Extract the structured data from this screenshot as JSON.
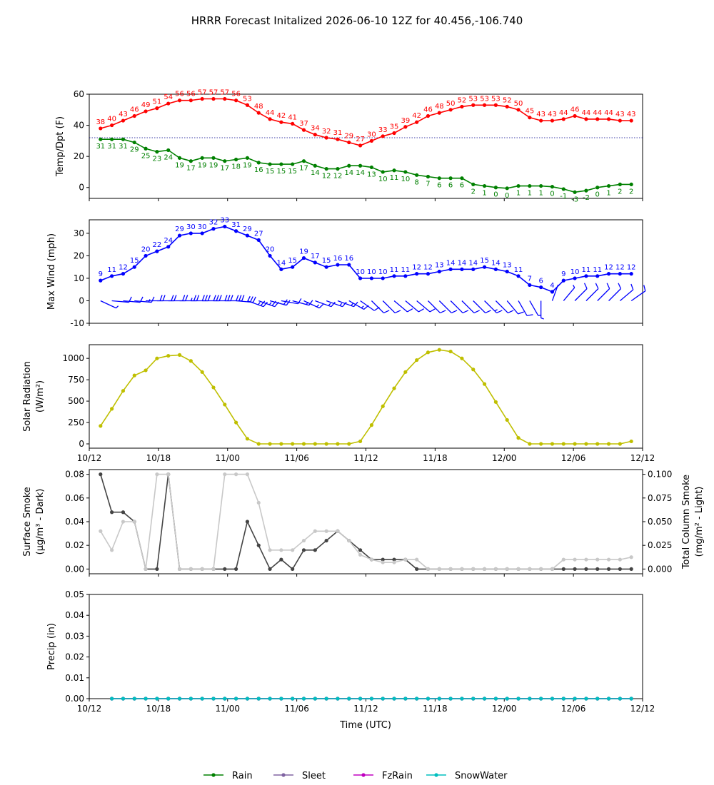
{
  "figure": {
    "title": "HRRR Forecast Initalized 2026-06-10 12Z for 40.456,-106.740",
    "x_tick_labels": [
      "10/12",
      "10/18",
      "11/00",
      "11/06",
      "11/12",
      "11/18",
      "12/00",
      "12/06",
      "12/12"
    ],
    "xlabel": "Time (UTC)"
  },
  "legend": {
    "items": [
      {
        "label": "Rain",
        "color": "#008000"
      },
      {
        "label": "Sleet",
        "color": "#8064a2"
      },
      {
        "label": "FzRain",
        "color": "#c000c0"
      },
      {
        "label": "SnowWater",
        "color": "#00bfbf"
      }
    ]
  },
  "chart_data": [
    {
      "type": "line",
      "ylabel": "Temp/Dpt (F)",
      "ylim": [
        -7,
        60
      ],
      "yticks": [
        0,
        20,
        40,
        60
      ],
      "x": [
        1,
        2,
        3,
        4,
        5,
        6,
        7,
        8,
        9,
        10,
        11,
        12,
        13,
        14,
        15,
        16,
        17,
        18,
        19,
        20,
        21,
        22,
        23,
        24,
        25,
        26,
        27,
        28,
        29,
        30,
        31,
        32,
        33,
        34,
        35,
        36,
        37,
        38,
        39,
        40,
        41,
        42,
        43,
        44,
        45,
        46,
        47,
        48
      ],
      "reference_line": {
        "y": 32,
        "color": "#00008b",
        "style": "dotted"
      },
      "series": [
        {
          "color": "#ff0000",
          "values": [
            38,
            40,
            43,
            46,
            49,
            51,
            54,
            56,
            56,
            57,
            57,
            57,
            56,
            53,
            48,
            44,
            42,
            41,
            37,
            34,
            32,
            31,
            29,
            27,
            30,
            33,
            35,
            39,
            42,
            46,
            48,
            50,
            52,
            53,
            53,
            53,
            52,
            50,
            45,
            43,
            43,
            44,
            46,
            44,
            44,
            44,
            43,
            43
          ],
          "labels": [
            "38",
            "40",
            "43",
            "46",
            "49",
            "51",
            "54",
            "56",
            "56",
            "57",
            "57",
            "57",
            "56",
            "53",
            "48",
            "44",
            "42",
            "41",
            "37",
            "34",
            "32",
            "31",
            "29",
            "27",
            "30",
            "33",
            "35",
            "39",
            "42",
            "46",
            "48",
            "50",
            "52",
            "53",
            "53",
            "53",
            "52",
            "50",
            "45",
            "43",
            "43",
            "44",
            "46",
            "44",
            "44",
            "44",
            "43",
            "43"
          ]
        },
        {
          "color": "#008000",
          "values": [
            31,
            31,
            31,
            29,
            25,
            23,
            24,
            19,
            17,
            19,
            19,
            17,
            18,
            19,
            16,
            15,
            15,
            15,
            17,
            14,
            12,
            12,
            14,
            14,
            13,
            10,
            11,
            10,
            8,
            7,
            6,
            6,
            6,
            2,
            1,
            0,
            -0.5,
            1,
            1,
            1,
            0.5,
            -1,
            -3,
            -2,
            0,
            1,
            2,
            2
          ],
          "labels": [
            "31",
            "31",
            "31",
            "29",
            "25",
            "23",
            "24",
            "19",
            "17",
            "19",
            "19",
            "17",
            "18",
            "19",
            "16",
            "15",
            "15",
            "15",
            "17",
            "14",
            "12",
            "12",
            "14",
            "14",
            "13",
            "10",
            "11",
            "10",
            "8",
            "7",
            "6",
            "6",
            "6",
            "2",
            "1",
            "0",
            "0",
            "1",
            "1",
            "1",
            "0",
            "-1",
            "-3",
            "-2",
            "0",
            "1",
            "2",
            "2"
          ]
        }
      ]
    },
    {
      "type": "line",
      "ylabel": "Max Wind (mph)",
      "ylim": [
        -10,
        36
      ],
      "yticks": [
        -10,
        0,
        10,
        20,
        30
      ],
      "x": [
        1,
        2,
        3,
        4,
        5,
        6,
        7,
        8,
        9,
        10,
        11,
        12,
        13,
        14,
        15,
        16,
        17,
        18,
        19,
        20,
        21,
        22,
        23,
        24,
        25,
        26,
        27,
        28,
        29,
        30,
        31,
        32,
        33,
        34,
        35,
        36,
        37,
        38,
        39,
        40,
        41,
        42,
        43,
        44,
        45,
        46,
        47,
        48
      ],
      "series": [
        {
          "color": "#0000ff",
          "values": [
            9,
            11,
            12,
            15,
            20,
            22,
            24,
            29,
            30,
            30,
            32,
            33,
            31,
            29,
            27,
            20,
            14,
            15,
            19,
            17,
            15,
            16,
            16,
            10,
            10,
            10,
            11,
            11,
            12,
            12,
            13,
            14,
            14,
            14,
            15,
            14,
            13,
            11,
            7,
            6,
            4,
            9,
            10,
            11,
            11,
            12,
            12,
            12
          ],
          "labels": [
            "9",
            "11",
            "12",
            "15",
            "20",
            "22",
            "24",
            "29",
            "30",
            "30",
            "32",
            "33",
            "31",
            "29",
            "27",
            "20",
            "14",
            "15",
            "19",
            "17",
            "15",
            "16",
            "16",
            "10",
            "10",
            "10",
            "11",
            "11",
            "12",
            "12",
            "13",
            "14",
            "14",
            "14",
            "15",
            "14",
            "13",
            "11",
            "7",
            "6",
            "4",
            "9",
            "10",
            "11",
            "11",
            "12",
            "12",
            "12"
          ]
        }
      ],
      "wind_barbs": {
        "color": "#0000ff",
        "y": 0,
        "direction_deg": [
          295,
          275,
          275,
          275,
          270,
          270,
          270,
          270,
          270,
          270,
          270,
          270,
          275,
          290,
          290,
          285,
          280,
          285,
          295,
          290,
          290,
          290,
          300,
          305,
          315,
          315,
          310,
          310,
          310,
          315,
          315,
          315,
          315,
          315,
          315,
          315,
          320,
          330,
          330,
          0,
          200,
          220,
          225,
          225,
          225,
          225,
          230,
          235
        ]
      }
    },
    {
      "type": "line",
      "ylabel": "Solar Radiation (W/m²)",
      "ylim": [
        -50,
        1160
      ],
      "yticks": [
        0,
        250,
        500,
        750,
        1000
      ],
      "x": [
        1,
        2,
        3,
        4,
        5,
        6,
        7,
        8,
        9,
        10,
        11,
        12,
        13,
        14,
        15,
        16,
        17,
        18,
        19,
        20,
        21,
        22,
        23,
        24,
        25,
        26,
        27,
        28,
        29,
        30,
        31,
        32,
        33,
        34,
        35,
        36,
        37,
        38,
        39,
        40,
        41,
        42,
        43,
        44,
        45,
        46,
        47,
        48
      ],
      "series": [
        {
          "color": "#bfbf00",
          "values": [
            210,
            410,
            620,
            800,
            860,
            1000,
            1030,
            1040,
            970,
            840,
            660,
            460,
            250,
            60,
            0,
            0,
            0,
            0,
            0,
            0,
            0,
            0,
            0,
            30,
            220,
            440,
            650,
            840,
            980,
            1070,
            1100,
            1080,
            1000,
            870,
            700,
            490,
            280,
            70,
            0,
            0,
            0,
            0,
            0,
            0,
            0,
            0,
            0,
            30
          ]
        }
      ]
    },
    {
      "type": "line",
      "ylabel": "Surface Smoke (μg/m³ - Dark)",
      "y2label": "Total Column Smoke (mg/m² - Light)",
      "ylim": [
        -0.004,
        0.084
      ],
      "yticks": [
        0.0,
        0.02,
        0.04,
        0.06,
        0.08
      ],
      "y2lim": [
        -0.005,
        0.105
      ],
      "y2ticks": [
        0.0,
        0.025,
        0.05,
        0.075,
        0.1
      ],
      "x": [
        1,
        2,
        3,
        4,
        5,
        6,
        7,
        8,
        9,
        10,
        11,
        12,
        13,
        14,
        15,
        16,
        17,
        18,
        19,
        20,
        21,
        22,
        23,
        24,
        25,
        26,
        27,
        28,
        29,
        30,
        31,
        32,
        33,
        34,
        35,
        36,
        37,
        38,
        39,
        40,
        41,
        42,
        43,
        44,
        45,
        46,
        47,
        48
      ],
      "series": [
        {
          "axis": "left",
          "color": "#444444",
          "values": [
            0.08,
            0.048,
            0.048,
            0.04,
            0,
            0,
            0.08,
            0,
            0,
            0,
            0,
            0,
            0,
            0.04,
            0.02,
            0,
            0.008,
            0,
            0.016,
            0.016,
            0.024,
            0.032,
            0.024,
            0.016,
            0.008,
            0.008,
            0.008,
            0.008,
            0,
            0,
            0,
            0,
            0,
            0,
            0,
            0,
            0,
            0,
            0,
            0,
            0,
            0,
            0,
            0,
            0,
            0,
            0,
            0
          ]
        },
        {
          "axis": "right",
          "color": "#c8c8c8",
          "values": [
            0.04,
            0.02,
            0.05,
            0.05,
            0,
            0.1,
            0.1,
            0,
            0,
            0,
            0,
            0.1,
            0.1,
            0.1,
            0.07,
            0.02,
            0.02,
            0.02,
            0.03,
            0.04,
            0.04,
            0.04,
            0.03,
            0.015,
            0.01,
            0.007,
            0.007,
            0.01,
            0.01,
            0,
            0,
            0,
            0,
            0,
            0,
            0,
            0,
            0,
            0,
            0,
            0,
            0.01,
            0.01,
            0.01,
            0.01,
            0.01,
            0.01,
            0.0125
          ]
        }
      ]
    },
    {
      "type": "line",
      "ylabel": "Precip (in)",
      "ylim": [
        0,
        0.05
      ],
      "yticks": [
        0.0,
        0.01,
        0.02,
        0.03,
        0.04,
        0.05
      ],
      "x": [
        2,
        3,
        4,
        5,
        6,
        7,
        8,
        9,
        10,
        11,
        12,
        13,
        14,
        15,
        16,
        17,
        18,
        19,
        20,
        21,
        22,
        23,
        24,
        25,
        26,
        27,
        28,
        29,
        30,
        31,
        32,
        33,
        34,
        35,
        36,
        37,
        38,
        39,
        40,
        41,
        42,
        43,
        44,
        45,
        46,
        47,
        48
      ],
      "series": [
        {
          "name": "Rain",
          "color": "#008000",
          "values": [
            0,
            0,
            0,
            0,
            0,
            0,
            0,
            0,
            0,
            0,
            0,
            0,
            0,
            0,
            0,
            0,
            0,
            0,
            0,
            0,
            0,
            0,
            0,
            0,
            0,
            0,
            0,
            0,
            0,
            0,
            0,
            0,
            0,
            0,
            0,
            0,
            0,
            0,
            0,
            0,
            0,
            0,
            0,
            0,
            0,
            0,
            0
          ]
        },
        {
          "name": "Sleet",
          "color": "#8064a2",
          "values": [
            0,
            0,
            0,
            0,
            0,
            0,
            0,
            0,
            0,
            0,
            0,
            0,
            0,
            0,
            0,
            0,
            0,
            0,
            0,
            0,
            0,
            0,
            0,
            0,
            0,
            0,
            0,
            0,
            0,
            0,
            0,
            0,
            0,
            0,
            0,
            0,
            0,
            0,
            0,
            0,
            0,
            0,
            0,
            0,
            0,
            0,
            0
          ]
        },
        {
          "name": "FzRain",
          "color": "#c000c0",
          "values": [
            0,
            0,
            0,
            0,
            0,
            0,
            0,
            0,
            0,
            0,
            0,
            0,
            0,
            0,
            0,
            0,
            0,
            0,
            0,
            0,
            0,
            0,
            0,
            0,
            0,
            0,
            0,
            0,
            0,
            0,
            0,
            0,
            0,
            0,
            0,
            0,
            0,
            0,
            0,
            0,
            0,
            0,
            0,
            0,
            0,
            0,
            0
          ]
        },
        {
          "name": "SnowWater",
          "color": "#00bfbf",
          "values": [
            0,
            0,
            0,
            0,
            0,
            0,
            0,
            0,
            0,
            0,
            0,
            0,
            0,
            0,
            0,
            0,
            0,
            0,
            0,
            0,
            0,
            0,
            0,
            0,
            0,
            0,
            0,
            0,
            0,
            0,
            0,
            0,
            0,
            0,
            0,
            0,
            0,
            0,
            0,
            0,
            0,
            0,
            0,
            0,
            0,
            0,
            0
          ]
        }
      ]
    }
  ]
}
